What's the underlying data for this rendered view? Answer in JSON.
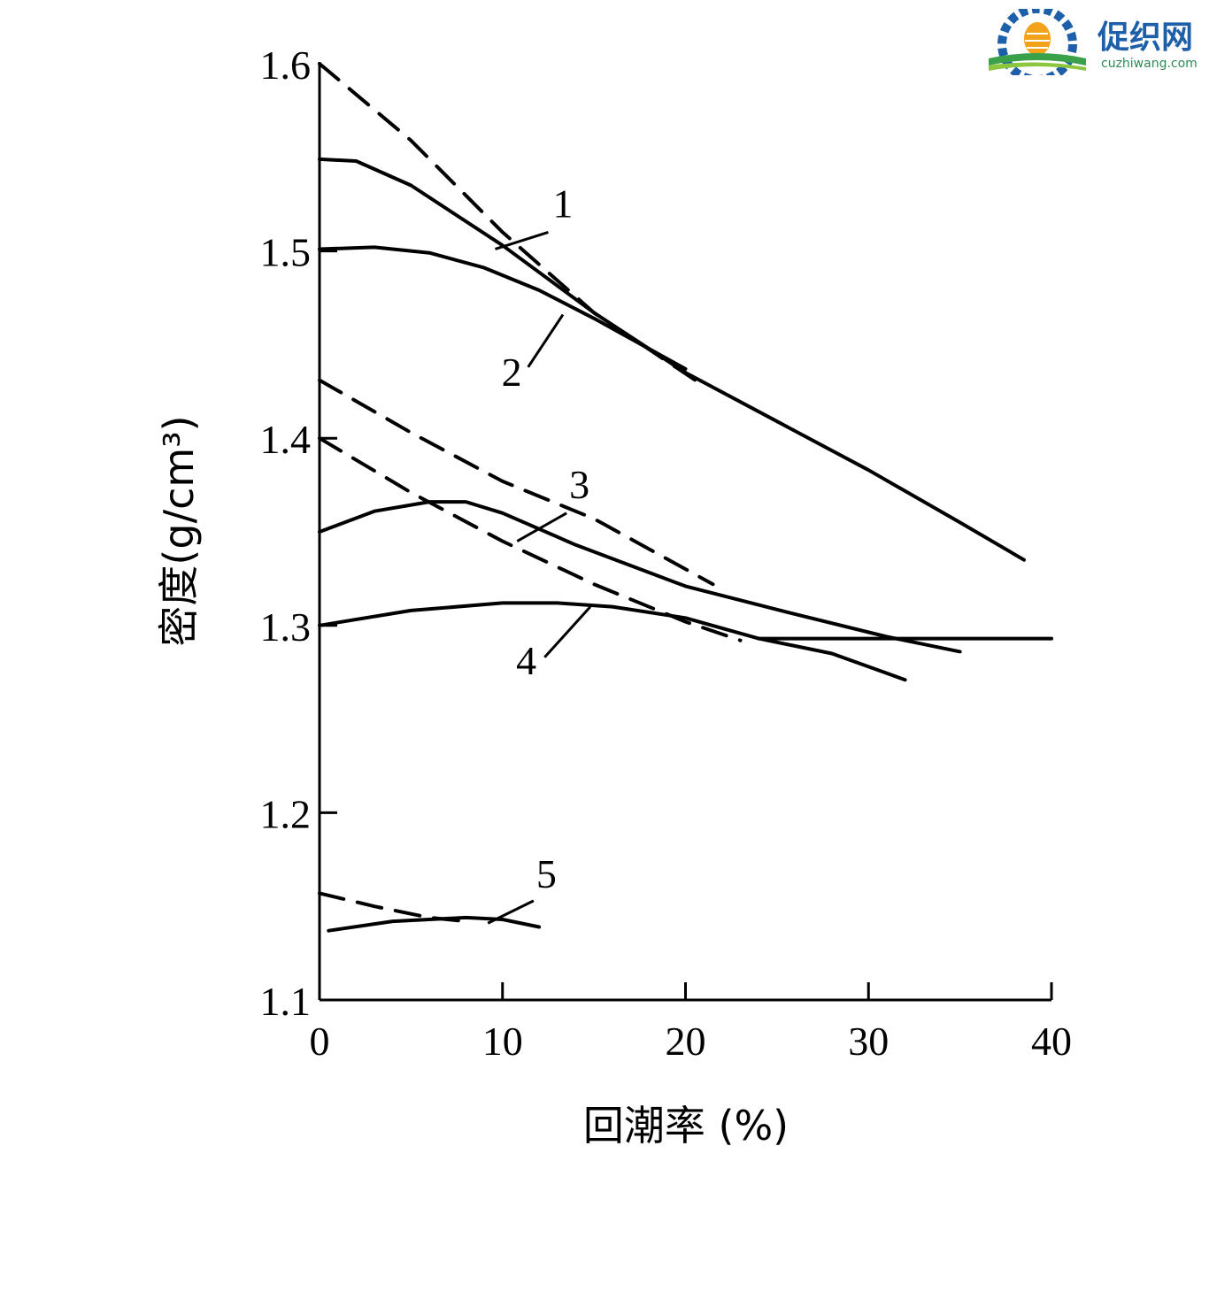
{
  "logo": {
    "name_cn": "促织网",
    "url_text": "cuzhiwang.com"
  },
  "chart_data": {
    "type": "line",
    "xlabel": "回潮率 (%)",
    "ylabel": "密度(g/cm³)",
    "xlim": [
      0,
      40
    ],
    "ylim": [
      1.1,
      1.6
    ],
    "x_ticks": [
      0,
      10,
      20,
      30,
      40
    ],
    "y_ticks": [
      1.1,
      1.2,
      1.3,
      1.4,
      1.5,
      1.6
    ],
    "x_tick_labels": [
      "0",
      "10",
      "20",
      "30",
      "40"
    ],
    "y_tick_labels": [
      "1.1",
      "1.2",
      "1.3",
      "1.4",
      "1.5",
      "1.6"
    ],
    "grid": false,
    "series": [
      {
        "style": "dashed",
        "points": [
          [
            0,
            1.6
          ],
          [
            5,
            1.559
          ],
          [
            10,
            1.51
          ],
          [
            15,
            1.467
          ],
          [
            21,
            1.428
          ]
        ]
      },
      {
        "style": "solid",
        "points": [
          [
            0,
            1.549
          ],
          [
            2,
            1.548
          ],
          [
            5,
            1.535
          ],
          [
            10,
            1.503
          ],
          [
            15,
            1.467
          ],
          [
            20,
            1.435
          ],
          [
            25,
            1.409
          ],
          [
            30,
            1.383
          ],
          [
            35,
            1.355
          ],
          [
            38.5,
            1.335
          ]
        ]
      },
      {
        "style": "solid",
        "points": [
          [
            0,
            1.501
          ],
          [
            3,
            1.502
          ],
          [
            6,
            1.499
          ],
          [
            9,
            1.491
          ],
          [
            12,
            1.479
          ],
          [
            15,
            1.464
          ],
          [
            20,
            1.437
          ]
        ]
      },
      {
        "style": "dashed",
        "points": [
          [
            0,
            1.431
          ],
          [
            5,
            1.403
          ],
          [
            10,
            1.377
          ],
          [
            15,
            1.357
          ],
          [
            21.5,
            1.322
          ]
        ]
      },
      {
        "style": "dashed",
        "points": [
          [
            0,
            1.4
          ],
          [
            5,
            1.371
          ],
          [
            10,
            1.345
          ],
          [
            15,
            1.322
          ],
          [
            20,
            1.302
          ],
          [
            23,
            1.292
          ]
        ]
      },
      {
        "style": "solid",
        "points": [
          [
            0,
            1.35
          ],
          [
            3,
            1.361
          ],
          [
            6,
            1.366
          ],
          [
            8,
            1.366
          ],
          [
            10,
            1.36
          ],
          [
            14,
            1.343
          ],
          [
            20,
            1.321
          ],
          [
            26,
            1.306
          ],
          [
            31,
            1.294
          ],
          [
            35,
            1.286
          ]
        ]
      },
      {
        "style": "solid",
        "points": [
          [
            0,
            1.3
          ],
          [
            5,
            1.308
          ],
          [
            10,
            1.312
          ],
          [
            13,
            1.312
          ],
          [
            16,
            1.31
          ],
          [
            20,
            1.304
          ],
          [
            24,
            1.293
          ],
          [
            28,
            1.285
          ],
          [
            32,
            1.271
          ]
        ]
      },
      {
        "style": "solid",
        "points": [
          [
            24,
            1.293
          ],
          [
            40,
            1.293
          ]
        ]
      },
      {
        "style": "dashed",
        "points": [
          [
            0,
            1.157
          ],
          [
            3,
            1.15
          ],
          [
            6,
            1.144
          ],
          [
            8,
            1.142
          ]
        ]
      },
      {
        "style": "solid",
        "points": [
          [
            0.5,
            1.137
          ],
          [
            4,
            1.142
          ],
          [
            8,
            1.144
          ],
          [
            10,
            1.143
          ],
          [
            12,
            1.139
          ]
        ]
      }
    ],
    "annotations": [
      {
        "text": "1",
        "label_at": [
          13.3,
          1.518
        ],
        "pointer_from": [
          12.5,
          1.51
        ],
        "pointer_to": [
          9.6,
          1.501
        ]
      },
      {
        "text": "2",
        "label_at": [
          10.5,
          1.428
        ],
        "pointer_from": [
          11.4,
          1.438
        ],
        "pointer_to": [
          13.3,
          1.466
        ]
      },
      {
        "text": "3",
        "label_at": [
          14.2,
          1.368
        ],
        "pointer_from": [
          13.5,
          1.36
        ],
        "pointer_to": [
          10.8,
          1.345
        ]
      },
      {
        "text": "4",
        "label_at": [
          11.3,
          1.274
        ],
        "pointer_from": [
          12.3,
          1.283
        ],
        "pointer_to": [
          14.8,
          1.31
        ]
      },
      {
        "text": "5",
        "label_at": [
          12.4,
          1.16
        ],
        "pointer_from": [
          11.7,
          1.153
        ],
        "pointer_to": [
          9.2,
          1.141
        ]
      }
    ]
  }
}
